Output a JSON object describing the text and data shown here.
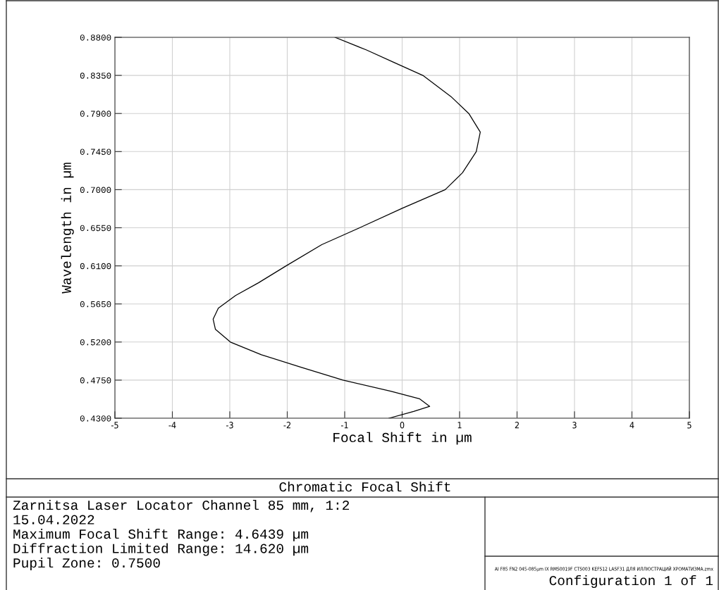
{
  "chart_data": {
    "type": "line",
    "title": "Chromatic Focal Shift",
    "xlabel": "Focal Shift in µm",
    "ylabel": "Wavelength in µm",
    "series": [
      {
        "color": "#000000",
        "x": [
          -0.23,
          0.2,
          0.48,
          0.3,
          -0.2,
          -1.03,
          -1.75,
          -2.45,
          -2.99,
          -3.25,
          -3.29,
          -3.2,
          -2.9,
          -2.5,
          -2.02,
          -1.4,
          -0.74,
          0.0,
          0.75,
          1.05,
          1.29,
          1.36,
          1.16,
          0.85,
          0.36,
          -0.13,
          -0.62,
          -1.17
        ],
        "values": [
          0.43,
          0.438,
          0.444,
          0.453,
          0.462,
          0.475,
          0.49,
          0.505,
          0.52,
          0.535,
          0.547,
          0.56,
          0.575,
          0.59,
          0.61,
          0.635,
          0.655,
          0.678,
          0.7,
          0.72,
          0.745,
          0.768,
          0.79,
          0.81,
          0.835,
          0.85,
          0.865,
          0.88
        ]
      }
    ],
    "xlim": [
      -5,
      5
    ],
    "xticks": [
      -5,
      -4,
      -3,
      -2,
      -1,
      0,
      1,
      2,
      3,
      4,
      5
    ],
    "ylim": [
      0.43,
      0.88
    ],
    "yticks": [
      {
        "value": 0.43,
        "label": "0.4300"
      },
      {
        "value": 0.475,
        "label": "0.4750"
      },
      {
        "value": 0.52,
        "label": "0.5200"
      },
      {
        "value": 0.565,
        "label": "0.5650"
      },
      {
        "value": 0.61,
        "label": "0.6100"
      },
      {
        "value": 0.655,
        "label": "0.6550"
      },
      {
        "value": 0.7,
        "label": "0.7000"
      },
      {
        "value": 0.745,
        "label": "0.7450"
      },
      {
        "value": 0.79,
        "label": "0.7900"
      },
      {
        "value": 0.835,
        "label": "0.8350"
      },
      {
        "value": 0.88,
        "label": "0.8800"
      }
    ],
    "grid": true,
    "marker": "none",
    "line_style": "solid",
    "annotations": [
      "Zarnitsa Laser Locator Channel 85 mm, 1:2",
      "15.04.2022",
      "Maximum Focal Shift Range: 4.6439 µm",
      "Diffraction Limited Range: 14.620 µm",
      "Pupil Zone: 0.7500",
      "AI F85 FN2 045-085µm IX RMS0019F CTS003 KEFS12 LASF31 ДЛЯ ИЛЛЮСТРАЦИЙ ХРОМАТИЗМА.zmx",
      "Configuration 1 of 1"
    ]
  }
}
